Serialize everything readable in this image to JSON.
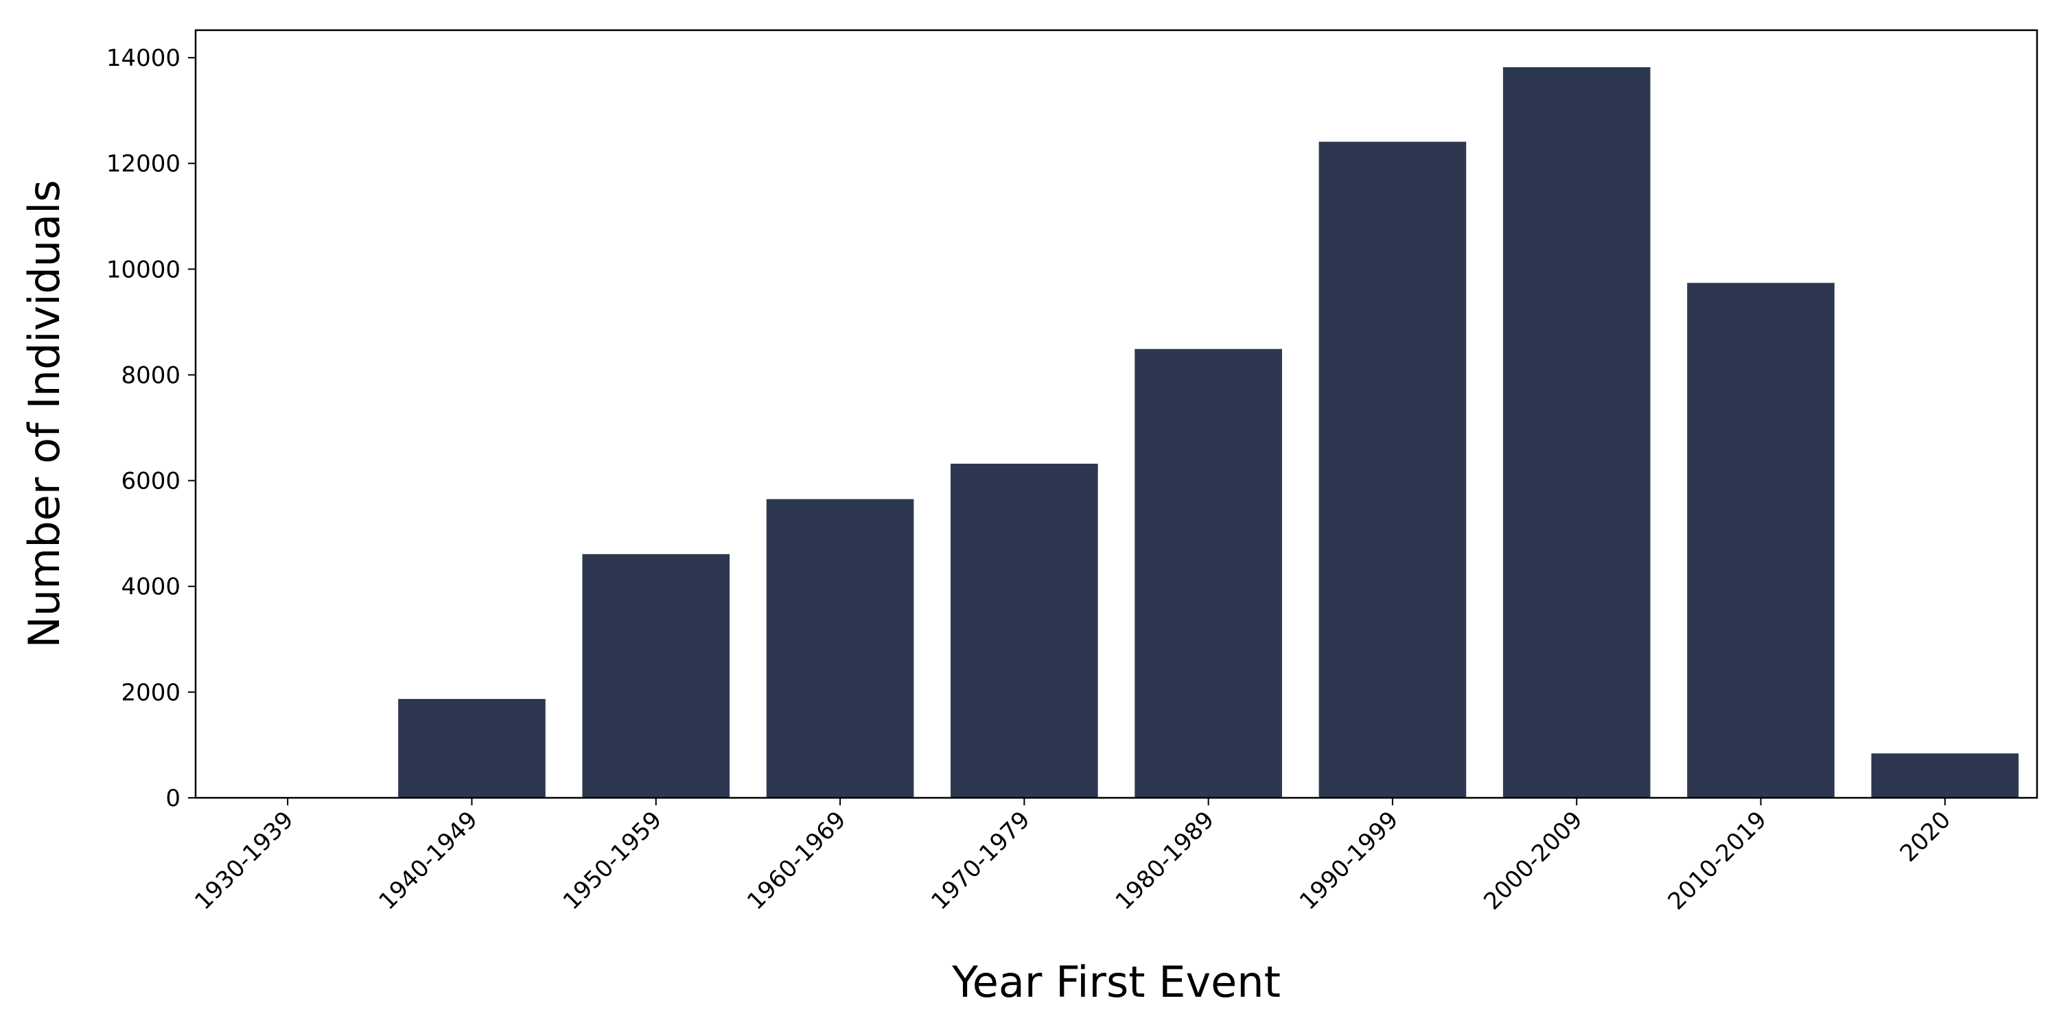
{
  "chart_data": {
    "type": "bar",
    "title": "",
    "xlabel": "Year First Event",
    "ylabel": "Number of Individuals",
    "categories": [
      "1930-1939",
      "1940-1949",
      "1950-1959",
      "1960-1969",
      "1970-1979",
      "1980-1989",
      "1990-1999",
      "2000-2009",
      "2010-2019",
      "2020"
    ],
    "values": [
      0,
      1870,
      4610,
      5650,
      6320,
      8490,
      12410,
      13820,
      9740,
      840
    ],
    "yticks": [
      0,
      2000,
      4000,
      6000,
      8000,
      10000,
      12000,
      14000
    ],
    "ylim": [
      0,
      14520
    ],
    "grid": false,
    "legend": "none",
    "bar_color": "#2d3850",
    "axis_color": "#000000"
  }
}
